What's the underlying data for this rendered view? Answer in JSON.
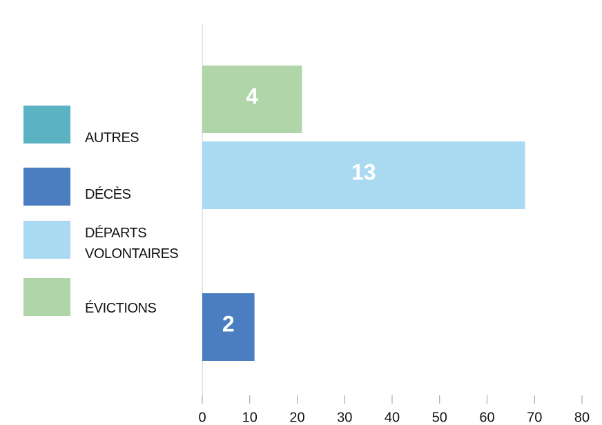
{
  "chart_data": {
    "type": "bar",
    "orientation": "horizontal",
    "series": [
      {
        "name": "AUTRES",
        "color": "#5bb2c3",
        "values": [
          null
        ],
        "counts": [
          null
        ]
      },
      {
        "name": "DÉCÈS",
        "color": "#4a7ec0",
        "values": [
          11
        ],
        "counts": [
          2
        ]
      },
      {
        "name": "DÉPARTS VOLONTAIRES",
        "color": "#a9daf2",
        "values": [
          68
        ],
        "counts": [
          13
        ]
      },
      {
        "name": "ÉVICTIONS",
        "color": "#afd5a9",
        "values": [
          21
        ],
        "counts": [
          4
        ]
      }
    ],
    "xlim": [
      0,
      80
    ],
    "xticks": [
      0,
      10,
      20,
      30,
      40,
      50,
      60,
      70,
      80
    ],
    "legend": "left"
  }
}
